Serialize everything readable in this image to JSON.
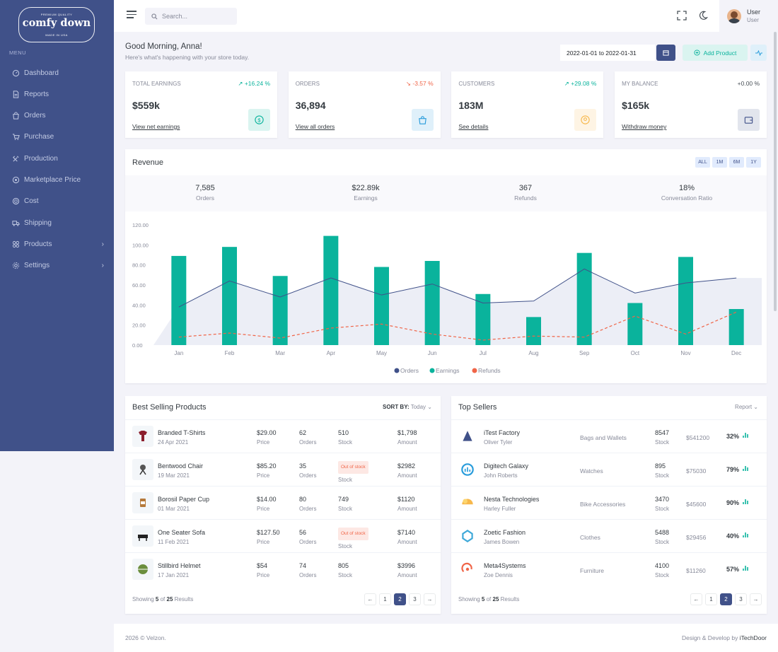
{
  "brand": {
    "top": "PREMIUM QUALITY",
    "name": "comfy down",
    "bottom": "MADE IN USA"
  },
  "menu_title": "MENU",
  "sidebar": {
    "items": [
      {
        "label": "Dashboard",
        "icon": "dashboard-icon"
      },
      {
        "label": "Reports",
        "icon": "file-icon"
      },
      {
        "label": "Orders",
        "icon": "bag-icon"
      },
      {
        "label": "Purchase",
        "icon": "cart-icon"
      },
      {
        "label": "Production",
        "icon": "tools-icon"
      },
      {
        "label": "Marketplace Price",
        "icon": "tag-icon"
      },
      {
        "label": "Cost",
        "icon": "coin-icon"
      },
      {
        "label": "Shipping",
        "icon": "truck-icon"
      },
      {
        "label": "Products",
        "icon": "grid-icon",
        "has_children": true
      },
      {
        "label": "Settings",
        "icon": "gear-icon",
        "has_children": true
      }
    ]
  },
  "header": {
    "search_placeholder": "Search...",
    "user_name": "User",
    "user_role": "User"
  },
  "greeting": {
    "title": "Good Morning, Anna!",
    "subtitle": "Here's what's happening with your store today."
  },
  "toolbar": {
    "date_range": "2022-01-01 to 2022-01-31",
    "add_product": "Add Product"
  },
  "stats": [
    {
      "label": "TOTAL EARNINGS",
      "change": "+16.24 %",
      "trend": "up",
      "value": "$559k",
      "link": "View net earnings",
      "icon": "dollar-icon",
      "color": "#0ab39c",
      "bg": "#daf4f0"
    },
    {
      "label": "ORDERS",
      "change": "-3.57 %",
      "trend": "down",
      "value": "36,894",
      "link": "View all orders",
      "icon": "shopping-bag-icon",
      "color": "#299cdb",
      "bg": "#dff0fa"
    },
    {
      "label": "CUSTOMERS",
      "change": "+29.08 %",
      "trend": "up",
      "value": "183M",
      "link": "See details",
      "icon": "user-circle-icon",
      "color": "#f7b84b",
      "bg": "#fef4e4"
    },
    {
      "label": "MY BALANCE",
      "change": "+0.00 %",
      "trend": "flat",
      "value": "$165k",
      "link": "Withdraw money",
      "icon": "wallet-icon",
      "color": "#405189",
      "bg": "#e2e5ed"
    }
  ],
  "revenue": {
    "title": "Revenue",
    "periods": [
      "ALL",
      "1M",
      "6M",
      "1Y"
    ],
    "summary": [
      {
        "value": "7,585",
        "label": "Orders"
      },
      {
        "value": "$22.89k",
        "label": "Earnings"
      },
      {
        "value": "367",
        "label": "Refunds"
      },
      {
        "value": "18%",
        "label": "Conversation Ratio"
      }
    ]
  },
  "chart_data": {
    "type": "bar",
    "categories": [
      "Jan",
      "Feb",
      "Mar",
      "Apr",
      "May",
      "Jun",
      "Jul",
      "Aug",
      "Sep",
      "Oct",
      "Nov",
      "Dec"
    ],
    "ylim": [
      0,
      120
    ],
    "yticks": [
      "0.00",
      "20.00",
      "40.00",
      "60.00",
      "80.00",
      "100.00",
      "120.00"
    ],
    "series": [
      {
        "name": "Orders",
        "type": "area",
        "color": "#405189",
        "values": [
          38,
          64,
          48,
          67,
          50,
          61,
          42,
          44,
          76,
          52,
          62,
          67
        ]
      },
      {
        "name": "Earnings",
        "type": "bar",
        "color": "#0ab39c",
        "values": [
          89,
          98,
          69,
          109,
          78,
          84,
          51,
          28,
          92,
          42,
          88,
          36
        ]
      },
      {
        "name": "Refunds",
        "type": "dashed-line",
        "color": "#f06548",
        "values": [
          8,
          12,
          7,
          17,
          21,
          11,
          5,
          9,
          8,
          29,
          11,
          33
        ]
      }
    ],
    "legend_position": "bottom"
  },
  "best_selling": {
    "title": "Best Selling Products",
    "sort_label": "SORT BY:",
    "sort_value": "Today",
    "rows": [
      {
        "name": "Branded T-Shirts",
        "date": "24 Apr 2021",
        "price": "$29.00",
        "price_label": "Price",
        "orders": "62",
        "orders_label": "Orders",
        "stock": "510",
        "stock_label": "Stock",
        "amount": "$1,798",
        "amount_label": "Amount",
        "out_of_stock": false
      },
      {
        "name": "Bentwood Chair",
        "date": "19 Mar 2021",
        "price": "$85.20",
        "price_label": "Price",
        "orders": "35",
        "orders_label": "Orders",
        "stock": "Out of stock",
        "stock_label": "Stock",
        "amount": "$2982",
        "amount_label": "Amount",
        "out_of_stock": true
      },
      {
        "name": "Borosil Paper Cup",
        "date": "01 Mar 2021",
        "price": "$14.00",
        "price_label": "Price",
        "orders": "80",
        "orders_label": "Orders",
        "stock": "749",
        "stock_label": "Stock",
        "amount": "$1120",
        "amount_label": "Amount",
        "out_of_stock": false
      },
      {
        "name": "One Seater Sofa",
        "date": "11 Feb 2021",
        "price": "$127.50",
        "price_label": "Price",
        "orders": "56",
        "orders_label": "Orders",
        "stock": "Out of stock",
        "stock_label": "Stock",
        "amount": "$7140",
        "amount_label": "Amount",
        "out_of_stock": true
      },
      {
        "name": "Stillbird Helmet",
        "date": "17 Jan 2021",
        "price": "$54",
        "price_label": "Price",
        "orders": "74",
        "orders_label": "Orders",
        "stock": "805",
        "stock_label": "Stock",
        "amount": "$3996",
        "amount_label": "Amount",
        "out_of_stock": false
      }
    ],
    "footer": {
      "prefix": "Showing",
      "shown": "5",
      "of": "of",
      "total": "25",
      "suffix": "Results"
    },
    "pages": [
      "←",
      "1",
      "2",
      "3",
      "→"
    ],
    "active_page": "2"
  },
  "top_sellers": {
    "title": "Top Sellers",
    "report_label": "Report",
    "rows": [
      {
        "company": "iTest Factory",
        "owner": "Oliver Tyler",
        "category": "Bags and Wallets",
        "stock": "8547",
        "stock_label": "Stock",
        "amount": "$541200",
        "percent": "32%",
        "logo_color": "#405189"
      },
      {
        "company": "Digitech Galaxy",
        "owner": "John Roberts",
        "category": "Watches",
        "stock": "895",
        "stock_label": "Stock",
        "amount": "$75030",
        "percent": "79%",
        "logo_color": "#299cdb"
      },
      {
        "company": "Nesta Technologies",
        "owner": "Harley Fuller",
        "category": "Bike Accessories",
        "stock": "3470",
        "stock_label": "Stock",
        "amount": "$45600",
        "percent": "90%",
        "logo_color": "#f7b84b"
      },
      {
        "company": "Zoetic Fashion",
        "owner": "James Bowen",
        "category": "Clothes",
        "stock": "5488",
        "stock_label": "Stock",
        "amount": "$29456",
        "percent": "40%",
        "logo_color": "#3fa9d9"
      },
      {
        "company": "Meta4Systems",
        "owner": "Zoe Dennis",
        "category": "Furniture",
        "stock": "4100",
        "stock_label": "Stock",
        "amount": "$11260",
        "percent": "57%",
        "logo_color": "#f06548"
      }
    ],
    "footer": {
      "prefix": "Showing",
      "shown": "5",
      "of": "of",
      "total": "25",
      "suffix": "Results"
    },
    "pages": [
      "←",
      "1",
      "2",
      "3",
      "→"
    ],
    "active_page": "2"
  },
  "footer": {
    "copyright": "2026 © Velzon.",
    "credit_prefix": "Design & Develop by",
    "credit_name": "iTechDoor"
  }
}
